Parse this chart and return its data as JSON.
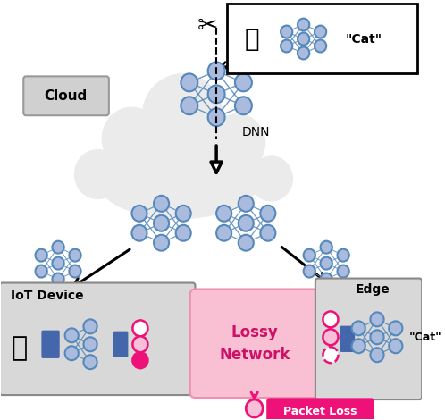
{
  "cloud_color": "#ebebeb",
  "node_blue": "#5588bb",
  "node_blue_light": "#88aacc",
  "node_blue_fill": "#aabbdd",
  "node_pink": "#ee1177",
  "node_pink_light": "#f090b8",
  "node_pink_fill": "#f8c0d8",
  "arrow_black": "#111111",
  "arrow_pink": "#ee1177",
  "box_gray": "#cccccc",
  "box_lossy": "#f9c0d4",
  "box_white": "#ffffff",
  "box_packet": "#ee1177",
  "text_cloud": "Cloud",
  "text_dnn": "DNN",
  "text_iot": "IoT Device",
  "text_edge": "Edge",
  "text_lossy": "Lossy\nNetwork",
  "text_packet": "Packet Loss",
  "text_cat": "\"Cat\""
}
